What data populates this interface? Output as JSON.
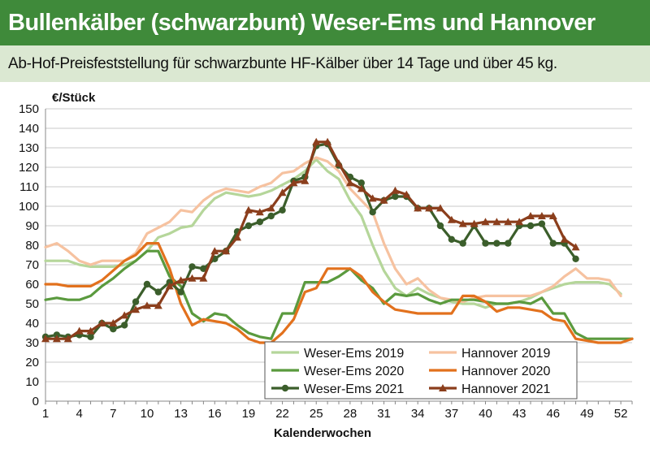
{
  "header": {
    "title": "Bullenkälber (schwarzbunt) Weser-Ems und Hannover",
    "subtitle": "Ab-Hof-Preisfeststellung für schwarzbunte HF-Kälber über 14 Tage und über 45 kg."
  },
  "chart_data": {
    "type": "line",
    "ylabel": "€/Stück",
    "xlabel": "Kalenderwochen",
    "xlim": [
      1,
      53
    ],
    "ylim": [
      0,
      150
    ],
    "x_ticks": [
      1,
      4,
      7,
      10,
      13,
      16,
      19,
      22,
      25,
      28,
      31,
      34,
      37,
      40,
      43,
      46,
      49,
      52
    ],
    "y_ticks": [
      0,
      10,
      20,
      30,
      40,
      50,
      60,
      70,
      80,
      90,
      100,
      110,
      120,
      130,
      140,
      150
    ],
    "grid": "horizontal",
    "legend_position": "bottom-right",
    "series": [
      {
        "name": "Weser-Ems 2019",
        "color": "#b5d69a",
        "marker": "none",
        "x": [
          1,
          2,
          3,
          4,
          5,
          6,
          7,
          8,
          9,
          10,
          11,
          12,
          13,
          14,
          15,
          16,
          17,
          18,
          19,
          20,
          21,
          22,
          23,
          24,
          25,
          26,
          27,
          28,
          29,
          30,
          31,
          32,
          33,
          34,
          35,
          36,
          37,
          38,
          39,
          40,
          41,
          42,
          43,
          44,
          45,
          46,
          47,
          48,
          49,
          50,
          51,
          52
        ],
        "y": [
          72,
          72,
          72,
          70,
          69,
          69,
          69,
          70,
          72,
          77,
          84,
          86,
          89,
          90,
          98,
          104,
          107,
          106,
          105,
          106,
          108,
          111,
          114,
          118,
          124,
          118,
          114,
          103,
          95,
          80,
          67,
          58,
          54,
          58,
          55,
          53,
          51,
          50,
          50,
          48,
          50,
          50,
          51,
          53,
          56,
          58,
          60,
          61,
          61,
          61,
          60,
          55
        ]
      },
      {
        "name": "Hannover 2019",
        "color": "#f6c2a0",
        "marker": "none",
        "x": [
          1,
          2,
          3,
          4,
          5,
          6,
          7,
          8,
          9,
          10,
          11,
          12,
          13,
          14,
          15,
          16,
          17,
          18,
          19,
          20,
          21,
          22,
          23,
          24,
          25,
          26,
          27,
          28,
          29,
          30,
          31,
          32,
          33,
          34,
          35,
          36,
          37,
          38,
          39,
          40,
          41,
          42,
          43,
          44,
          45,
          46,
          47,
          48,
          49,
          50,
          51,
          52
        ],
        "y": [
          79,
          81,
          77,
          72,
          70,
          72,
          72,
          72,
          76,
          86,
          89,
          92,
          98,
          97,
          103,
          107,
          109,
          108,
          107,
          110,
          112,
          117,
          118,
          122,
          125,
          123,
          118,
          109,
          103,
          97,
          81,
          68,
          60,
          63,
          57,
          53,
          52,
          51,
          53,
          54,
          54,
          54,
          54,
          54,
          56,
          59,
          64,
          68,
          63,
          63,
          62,
          54
        ]
      },
      {
        "name": "Weser-Ems 2020",
        "color": "#5a9a3e",
        "marker": "none",
        "x": [
          1,
          2,
          3,
          4,
          5,
          6,
          7,
          8,
          9,
          10,
          11,
          12,
          13,
          14,
          15,
          16,
          17,
          18,
          19,
          20,
          21,
          22,
          23,
          24,
          25,
          26,
          27,
          28,
          29,
          30,
          31,
          32,
          33,
          34,
          35,
          36,
          37,
          38,
          39,
          40,
          41,
          42,
          43,
          44,
          45,
          46,
          47,
          48,
          49,
          50,
          51,
          52,
          53
        ],
        "y": [
          52,
          53,
          52,
          52,
          54,
          59,
          63,
          68,
          72,
          77,
          77,
          64,
          59,
          45,
          41,
          45,
          44,
          39,
          35,
          33,
          32,
          45,
          45,
          61,
          61,
          61,
          64,
          68,
          62,
          58,
          50,
          55,
          54,
          55,
          52,
          50,
          52,
          52,
          52,
          51,
          50,
          50,
          51,
          50,
          53,
          45,
          45,
          35,
          32,
          32,
          32,
          32,
          32
        ]
      },
      {
        "name": "Hannover 2020",
        "color": "#e2711d",
        "marker": "none",
        "x": [
          1,
          2,
          3,
          4,
          5,
          6,
          7,
          8,
          9,
          10,
          11,
          12,
          13,
          14,
          15,
          16,
          17,
          18,
          19,
          20,
          21,
          22,
          23,
          24,
          25,
          26,
          27,
          28,
          29,
          30,
          31,
          32,
          33,
          34,
          35,
          36,
          37,
          38,
          39,
          40,
          41,
          42,
          43,
          44,
          45,
          46,
          47,
          48,
          49,
          50,
          51,
          52,
          53
        ],
        "y": [
          60,
          60,
          59,
          59,
          59,
          62,
          67,
          72,
          75,
          81,
          81,
          68,
          50,
          39,
          42,
          41,
          40,
          37,
          32,
          30,
          30,
          35,
          42,
          56,
          58,
          68,
          68,
          68,
          64,
          56,
          51,
          47,
          46,
          45,
          45,
          45,
          45,
          54,
          54,
          51,
          46,
          48,
          48,
          47,
          46,
          42,
          41,
          32,
          31,
          30,
          30,
          30,
          32
        ]
      },
      {
        "name": "Weser-Ems 2021",
        "color": "#3b5e2b",
        "marker": "circle",
        "x": [
          1,
          2,
          3,
          4,
          5,
          6,
          7,
          8,
          9,
          10,
          11,
          12,
          13,
          14,
          15,
          16,
          17,
          18,
          19,
          20,
          21,
          22,
          23,
          24,
          25,
          26,
          27,
          28,
          29,
          30,
          31,
          32,
          33,
          34,
          35,
          36,
          37,
          38,
          39,
          40,
          41,
          42,
          43,
          44,
          45,
          46,
          47,
          48
        ],
        "y": [
          33,
          34,
          33,
          34,
          33,
          40,
          37,
          39,
          51,
          60,
          56,
          61,
          56,
          69,
          68,
          73,
          77,
          87,
          90,
          92,
          95,
          98,
          113,
          115,
          131,
          132,
          121,
          115,
          112,
          97,
          103,
          105,
          105,
          99,
          99,
          90,
          83,
          81,
          90,
          81,
          81,
          81,
          90,
          90,
          91,
          81,
          81,
          73
        ]
      },
      {
        "name": "Hannover 2021",
        "color": "#8b3e1c",
        "marker": "triangle",
        "x": [
          1,
          2,
          3,
          4,
          5,
          6,
          7,
          8,
          9,
          10,
          11,
          12,
          13,
          14,
          15,
          16,
          17,
          18,
          19,
          20,
          21,
          22,
          23,
          24,
          25,
          26,
          27,
          28,
          29,
          30,
          31,
          32,
          33,
          34,
          35,
          36,
          37,
          38,
          39,
          40,
          41,
          42,
          43,
          44,
          45,
          46,
          47,
          48
        ],
        "y": [
          32,
          32,
          32,
          36,
          36,
          40,
          40,
          44,
          47,
          49,
          49,
          59,
          62,
          63,
          63,
          77,
          77,
          84,
          98,
          97,
          99,
          107,
          112,
          113,
          133,
          133,
          122,
          112,
          109,
          104,
          103,
          108,
          106,
          99,
          99,
          99,
          93,
          91,
          91,
          92,
          92,
          92,
          92,
          95,
          95,
          95,
          83,
          79
        ]
      }
    ]
  }
}
